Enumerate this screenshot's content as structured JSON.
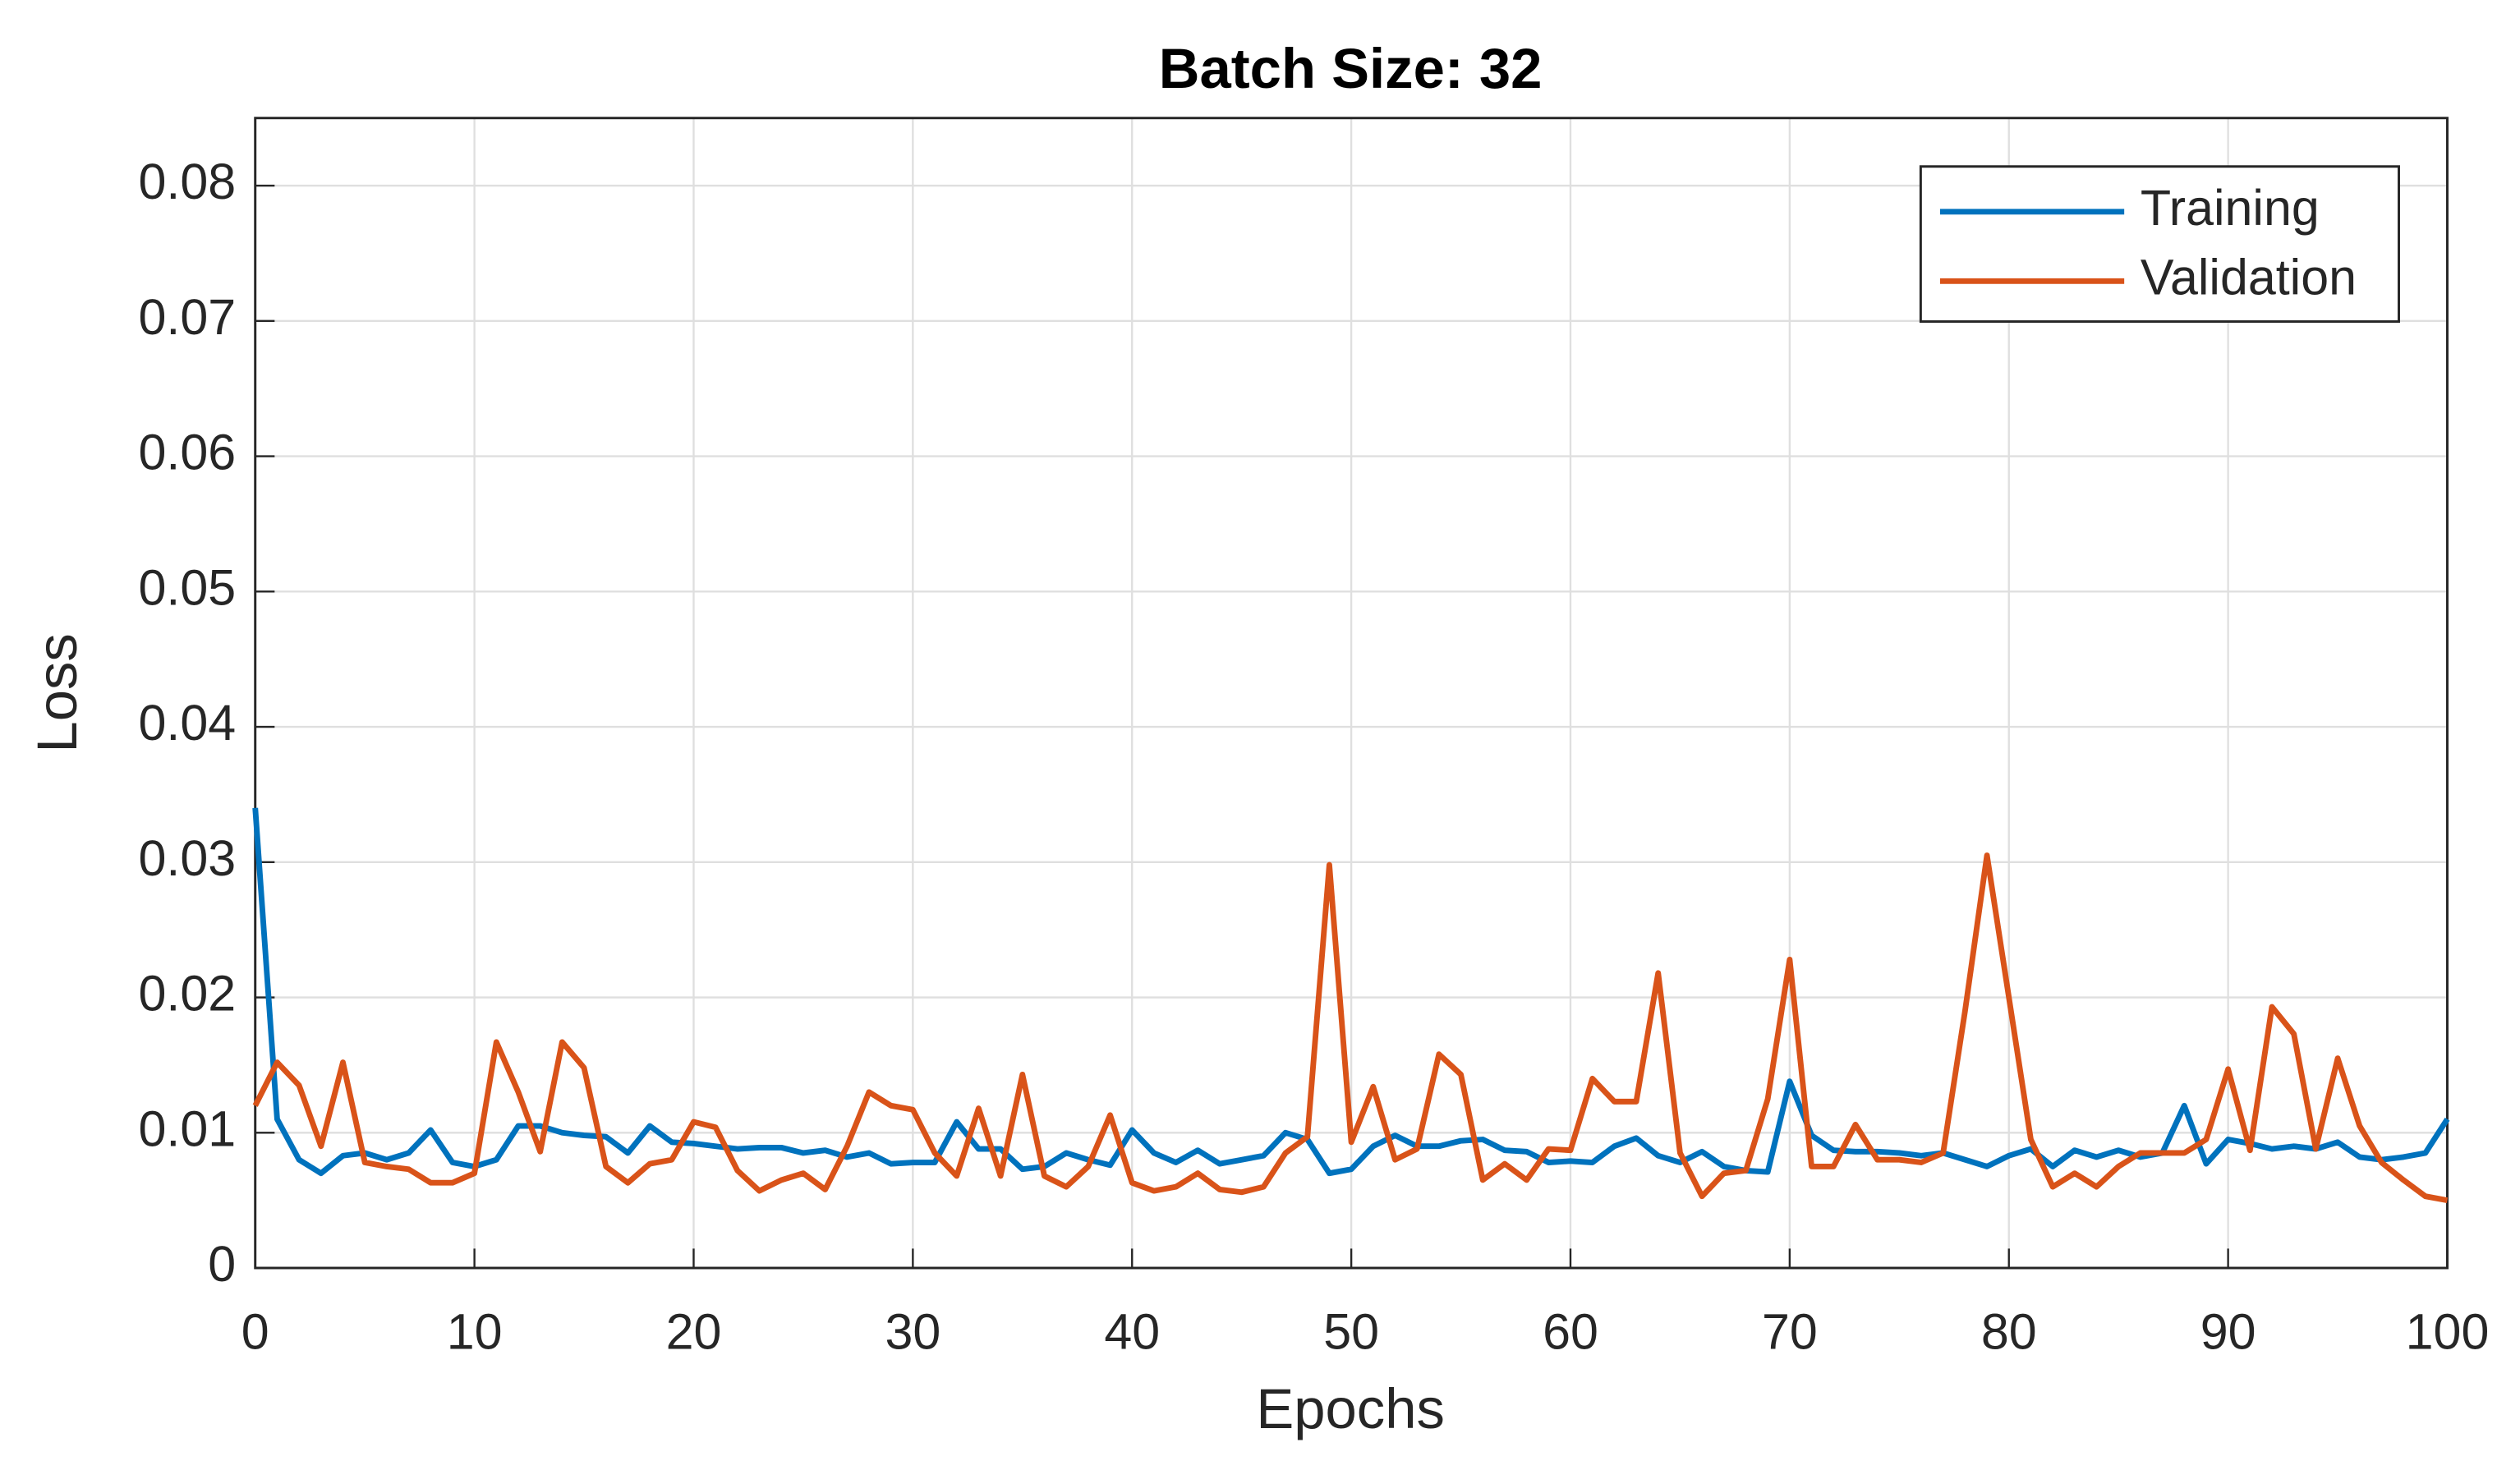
{
  "chart_data": {
    "type": "line",
    "title": "Batch Size: 32",
    "xlabel": "Epochs",
    "ylabel": "Loss",
    "x": [
      0,
      1,
      2,
      3,
      4,
      5,
      6,
      7,
      8,
      9,
      10,
      11,
      12,
      13,
      14,
      15,
      16,
      17,
      18,
      19,
      20,
      21,
      22,
      23,
      24,
      25,
      26,
      27,
      28,
      29,
      30,
      31,
      32,
      33,
      34,
      35,
      36,
      37,
      38,
      39,
      40,
      41,
      42,
      43,
      44,
      45,
      46,
      47,
      48,
      49,
      50,
      51,
      52,
      53,
      54,
      55,
      56,
      57,
      58,
      59,
      60,
      61,
      62,
      63,
      64,
      65,
      66,
      67,
      68,
      69,
      70,
      71,
      72,
      73,
      74,
      75,
      76,
      77,
      78,
      79,
      80,
      81,
      82,
      83,
      84,
      85,
      86,
      87,
      88,
      89,
      90,
      91,
      92,
      93,
      94,
      95,
      96,
      97,
      98,
      99,
      100
    ],
    "series": [
      {
        "name": "Training",
        "color": "#0072bd",
        "values": [
          0.034,
          0.011,
          0.008,
          0.007,
          0.0083,
          0.0085,
          0.008,
          0.0085,
          0.0102,
          0.0078,
          0.0075,
          0.008,
          0.0105,
          0.0105,
          0.01,
          0.0098,
          0.0097,
          0.0085,
          0.0105,
          0.0093,
          0.0092,
          0.009,
          0.0088,
          0.0089,
          0.0089,
          0.0085,
          0.0087,
          0.0082,
          0.0085,
          0.0077,
          0.0078,
          0.0078,
          0.0108,
          0.0088,
          0.0088,
          0.0073,
          0.0075,
          0.0085,
          0.008,
          0.0076,
          0.0102,
          0.0085,
          0.0078,
          0.0087,
          0.0077,
          0.008,
          0.0083,
          0.01,
          0.0095,
          0.007,
          0.0073,
          0.009,
          0.0098,
          0.009,
          0.009,
          0.0094,
          0.0095,
          0.0087,
          0.0086,
          0.0078,
          0.0079,
          0.0078,
          0.009,
          0.0096,
          0.0083,
          0.0078,
          0.0086,
          0.0075,
          0.0072,
          0.0071,
          0.0138,
          0.0098,
          0.0087,
          0.0086,
          0.0086,
          0.0085,
          0.0083,
          0.0085,
          0.008,
          0.0075,
          0.0083,
          0.0088,
          0.0075,
          0.0087,
          0.0082,
          0.0087,
          0.0082,
          0.0085,
          0.012,
          0.0077,
          0.0095,
          0.0092,
          0.0088,
          0.009,
          0.0088,
          0.0093,
          0.0082,
          0.008,
          0.0082,
          0.0085,
          0.011
        ]
      },
      {
        "name": "Validation",
        "color": "#d95319",
        "values": [
          0.012,
          0.0152,
          0.0135,
          0.009,
          0.0152,
          0.0078,
          0.0075,
          0.0073,
          0.0063,
          0.0063,
          0.007,
          0.0167,
          0.013,
          0.0086,
          0.0167,
          0.0148,
          0.0075,
          0.0063,
          0.0077,
          0.008,
          0.0108,
          0.0104,
          0.0072,
          0.0057,
          0.0065,
          0.007,
          0.0058,
          0.009,
          0.013,
          0.012,
          0.0117,
          0.0085,
          0.0068,
          0.0118,
          0.0068,
          0.0143,
          0.0068,
          0.006,
          0.0075,
          0.0113,
          0.0063,
          0.0057,
          0.006,
          0.007,
          0.0058,
          0.0056,
          0.006,
          0.0085,
          0.0097,
          0.0298,
          0.0093,
          0.0134,
          0.008,
          0.0088,
          0.0158,
          0.0143,
          0.0065,
          0.0077,
          0.0065,
          0.0088,
          0.0087,
          0.014,
          0.0123,
          0.0123,
          0.0218,
          0.0085,
          0.0053,
          0.007,
          0.0072,
          0.0125,
          0.0228,
          0.0075,
          0.0075,
          0.0106,
          0.008,
          0.008,
          0.0078,
          0.0085,
          0.019,
          0.0305,
          0.02,
          0.0095,
          0.006,
          0.007,
          0.006,
          0.0075,
          0.0085,
          0.0085,
          0.0085,
          0.0095,
          0.0147,
          0.0087,
          0.0193,
          0.0173,
          0.0088,
          0.0155,
          0.0105,
          0.0078,
          0.0065,
          0.0053,
          0.005
        ]
      }
    ],
    "xlim": [
      0,
      100
    ],
    "xticks": [
      0,
      10,
      20,
      30,
      40,
      50,
      60,
      70,
      80,
      90,
      100
    ],
    "ylim": [
      0,
      0.085
    ],
    "yticks": [
      0,
      0.01,
      0.02,
      0.03,
      0.04,
      0.05,
      0.06,
      0.07,
      0.08
    ],
    "grid": true,
    "legend": "upper right"
  }
}
